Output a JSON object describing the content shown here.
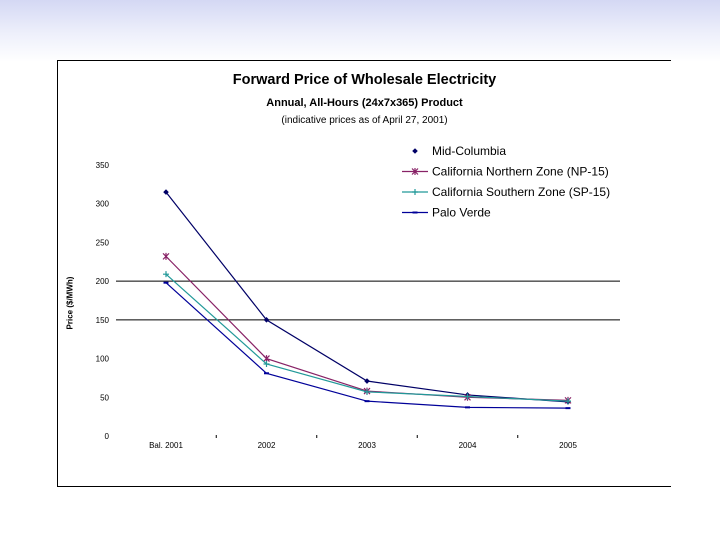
{
  "chart_data": {
    "type": "line",
    "title": "Forward Price of Wholesale Electricity",
    "subtitle": "Annual, All-Hours (24x7x365) Product",
    "note": "(indicative prices as of April 27, 2001)",
    "ylabel": "Price ($/MWh)",
    "xlabel": "",
    "ylim": [
      0,
      350
    ],
    "yticks": [
      0,
      50,
      100,
      150,
      200,
      250,
      300,
      350
    ],
    "categories": [
      "Bal. 2001",
      "2002",
      "2003",
      "2004",
      "2005"
    ],
    "gridlines": [
      150,
      200
    ],
    "legend_position": "top-right",
    "series": [
      {
        "name": "Mid-Columbia",
        "color": "#000066",
        "marker": "diamond",
        "values": [
          315,
          150,
          71,
          53,
          44
        ]
      },
      {
        "name": "California Northern Zone (NP-15)",
        "color": "#882266",
        "marker": "x",
        "values": [
          232,
          100,
          58,
          50,
          46
        ]
      },
      {
        "name": "California Southern Zone (SP-15)",
        "color": "#229999",
        "marker": "plus",
        "values": [
          209,
          93,
          57,
          51,
          45
        ]
      },
      {
        "name": "Palo Verde",
        "color": "#000099",
        "marker": "dash",
        "values": [
          198,
          81,
          45,
          37,
          36
        ]
      }
    ]
  }
}
